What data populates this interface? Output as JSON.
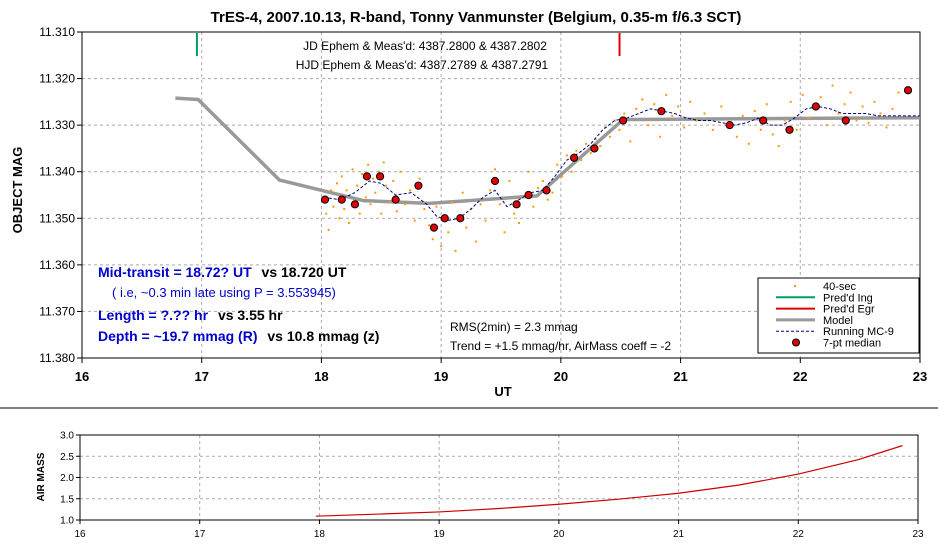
{
  "chart_data": [
    {
      "type": "scatter",
      "title": "TrES-4, 2007.10.13, R-band, Tonny Vanmunster (Belgium, 0.35-m f/6.3 SCT)",
      "xlabel": "UT",
      "ylabel": "OBJECT MAG",
      "xlim": [
        16,
        23
      ],
      "ylim": [
        11.31,
        11.38
      ],
      "y_inverted": true,
      "grid": true,
      "xticks": [
        "16",
        "17",
        "18",
        "19",
        "20",
        "21",
        "22",
        "23"
      ],
      "yticks": [
        "11.310",
        "11.320",
        "11.330",
        "11.340",
        "11.350",
        "11.360",
        "11.370",
        "11.380"
      ],
      "legend_position": "bottom-right",
      "annotations": {
        "ephem_jd": "JD Ephem & Meas'd: 4387.2800 & 4387.2802",
        "ephem_hjd": "HJD Ephem & Meas'd: 4387.2789 & 4387.2791",
        "mid_transit_a": "Mid-transit = 18.72? UT",
        "mid_transit_b": "vs 18.720 UT",
        "late_note": "( i.e, ~0.3 min late using P = 3.553945)",
        "length_a": "Length = ?.?? hr",
        "length_b": "vs 3.55 hr",
        "depth_a": "Depth = ~19.7 mmag (R)",
        "depth_b": "vs 10.8 mmag (z)",
        "rms": "RMS(2min) = 2.3 mmag",
        "trend": "Trend = +1.5 mmag/hr, AirMass coeff = -2"
      },
      "vlines": [
        {
          "name": "Pred'd Ing",
          "x": 16.96,
          "color": "#00a060"
        },
        {
          "name": "Pred'd Egr",
          "x": 20.49,
          "color": "#e00000"
        }
      ],
      "series": [
        {
          "name": "40-sec",
          "kind": "points",
          "color": "#ff9900",
          "points": [
            [
              18.02,
              11.3455
            ],
            [
              18.04,
              11.349
            ],
            [
              18.06,
              11.3525
            ],
            [
              18.08,
              11.344
            ],
            [
              18.1,
              11.3475
            ],
            [
              18.13,
              11.3425
            ],
            [
              18.15,
              11.35
            ],
            [
              18.17,
              11.341
            ],
            [
              18.19,
              11.348
            ],
            [
              18.21,
              11.344
            ],
            [
              18.23,
              11.351
            ],
            [
              18.26,
              11.3395
            ],
            [
              18.28,
              11.3465
            ],
            [
              18.3,
              11.343
            ],
            [
              18.32,
              11.349
            ],
            [
              18.34,
              11.3405
            ],
            [
              18.37,
              11.3455
            ],
            [
              18.39,
              11.3385
            ],
            [
              18.41,
              11.347
            ],
            [
              18.43,
              11.3415
            ],
            [
              18.45,
              11.3445
            ],
            [
              18.48,
              11.34
            ],
            [
              18.5,
              11.349
            ],
            [
              18.52,
              11.338
            ],
            [
              18.54,
              11.343
            ],
            [
              18.57,
              11.3465
            ],
            [
              18.6,
              11.342
            ],
            [
              18.63,
              11.3485
            ],
            [
              18.66,
              11.34
            ],
            [
              18.7,
              11.347
            ],
            [
              18.74,
              11.344
            ],
            [
              18.78,
              11.3505
            ],
            [
              18.82,
              11.3415
            ],
            [
              18.86,
              11.348
            ],
            [
              18.9,
              11.3515
            ],
            [
              18.93,
              11.3545
            ],
            [
              18.96,
              11.3475
            ],
            [
              19.0,
              11.356
            ],
            [
              19.03,
              11.3495
            ],
            [
              19.06,
              11.353
            ],
            [
              19.09,
              11.3465
            ],
            [
              19.12,
              11.357
            ],
            [
              19.15,
              11.35
            ],
            [
              19.18,
              11.3445
            ],
            [
              19.21,
              11.352
            ],
            [
              19.25,
              11.348
            ],
            [
              19.29,
              11.355
            ],
            [
              19.33,
              11.347
            ],
            [
              19.37,
              11.3505
            ],
            [
              19.41,
              11.344
            ],
            [
              19.45,
              11.3395
            ],
            [
              19.49,
              11.347
            ],
            [
              19.53,
              11.353
            ],
            [
              19.57,
              11.342
            ],
            [
              19.61,
              11.349
            ],
            [
              19.65,
              11.351
            ],
            [
              19.69,
              11.3455
            ],
            [
              19.73,
              11.34
            ],
            [
              19.77,
              11.3475
            ],
            [
              19.81,
              11.3435
            ],
            [
              19.85,
              11.342
            ],
            [
              19.89,
              11.346
            ],
            [
              19.93,
              11.3445
            ],
            [
              19.97,
              11.3385
            ],
            [
              20.01,
              11.341
            ],
            [
              20.05,
              11.3365
            ],
            [
              20.09,
              11.34
            ],
            [
              20.13,
              11.3355
            ],
            [
              20.17,
              11.3375
            ],
            [
              20.21,
              11.334
            ],
            [
              20.25,
              11.336
            ],
            [
              20.29,
              11.333
            ],
            [
              20.33,
              11.3345
            ],
            [
              20.37,
              11.3305
            ],
            [
              20.41,
              11.3325
            ],
            [
              20.45,
              11.329
            ],
            [
              20.49,
              11.331
            ],
            [
              20.53,
              11.3275
            ],
            [
              20.58,
              11.3335
            ],
            [
              20.63,
              11.3265
            ],
            [
              20.68,
              11.3245
            ],
            [
              20.73,
              11.33
            ],
            [
              20.78,
              11.3255
            ],
            [
              20.83,
              11.3325
            ],
            [
              20.88,
              11.3235
            ],
            [
              20.93,
              11.328
            ],
            [
              20.98,
              11.326
            ],
            [
              21.03,
              11.3305
            ],
            [
              21.08,
              11.325
            ],
            [
              21.13,
              11.329
            ],
            [
              21.2,
              11.3275
            ],
            [
              21.27,
              11.331
            ],
            [
              21.34,
              11.326
            ],
            [
              21.4,
              11.3295
            ],
            [
              21.47,
              11.3325
            ],
            [
              21.52,
              11.328
            ],
            [
              21.57,
              11.334
            ],
            [
              21.62,
              11.327
            ],
            [
              21.67,
              11.331
            ],
            [
              21.72,
              11.3255
            ],
            [
              21.77,
              11.332
            ],
            [
              21.82,
              11.3345
            ],
            [
              21.87,
              11.329
            ],
            [
              21.92,
              11.325
            ],
            [
              21.97,
              11.331
            ],
            [
              22.02,
              11.3235
            ],
            [
              22.07,
              11.3285
            ],
            [
              22.12,
              11.3265
            ],
            [
              22.17,
              11.324
            ],
            [
              22.22,
              11.33
            ],
            [
              22.27,
              11.3215
            ],
            [
              22.32,
              11.3275
            ],
            [
              22.37,
              11.3255
            ],
            [
              22.42,
              11.323
            ],
            [
              22.47,
              11.329
            ],
            [
              22.52,
              11.326
            ],
            [
              22.57,
              11.3295
            ],
            [
              22.62,
              11.325
            ],
            [
              22.67,
              11.3275
            ],
            [
              22.72,
              11.3305
            ],
            [
              22.77,
              11.3265
            ],
            [
              22.82,
              11.323
            ]
          ]
        },
        {
          "name": "Running MC-9",
          "kind": "dashed-line",
          "color": "#000080",
          "points": [
            [
              18.02,
              11.3455
            ],
            [
              18.15,
              11.346
            ],
            [
              18.28,
              11.3445
            ],
            [
              18.4,
              11.342
            ],
            [
              18.5,
              11.3425
            ],
            [
              18.62,
              11.345
            ],
            [
              18.75,
              11.3445
            ],
            [
              18.88,
              11.347
            ],
            [
              18.96,
              11.3495
            ],
            [
              19.05,
              11.3505
            ],
            [
              19.15,
              11.35
            ],
            [
              19.25,
              11.348
            ],
            [
              19.35,
              11.3455
            ],
            [
              19.45,
              11.344
            ],
            [
              19.55,
              11.3475
            ],
            [
              19.65,
              11.346
            ],
            [
              19.75,
              11.3445
            ],
            [
              19.85,
              11.344
            ],
            [
              19.95,
              11.341
            ],
            [
              20.05,
              11.3375
            ],
            [
              20.15,
              11.336
            ],
            [
              20.25,
              11.334
            ],
            [
              20.35,
              11.331
            ],
            [
              20.45,
              11.329
            ],
            [
              20.55,
              11.3285
            ],
            [
              20.65,
              11.3275
            ],
            [
              20.75,
              11.3265
            ],
            [
              20.85,
              11.327
            ],
            [
              20.95,
              11.3275
            ],
            [
              21.05,
              11.3285
            ],
            [
              21.15,
              11.329
            ],
            [
              21.25,
              11.329
            ],
            [
              21.35,
              11.3295
            ],
            [
              21.45,
              11.33
            ],
            [
              21.55,
              11.3295
            ],
            [
              21.65,
              11.3285
            ],
            [
              21.75,
              11.33
            ],
            [
              21.85,
              11.33
            ],
            [
              21.95,
              11.3285
            ],
            [
              22.05,
              11.3265
            ],
            [
              22.15,
              11.326
            ],
            [
              22.25,
              11.3265
            ],
            [
              22.35,
              11.3275
            ],
            [
              22.45,
              11.3275
            ],
            [
              22.55,
              11.3275
            ],
            [
              22.65,
              11.328
            ],
            [
              22.8,
              11.328
            ],
            [
              23.0,
              11.328
            ]
          ]
        },
        {
          "name": "Model",
          "kind": "line",
          "color": "#999999",
          "points": [
            [
              16.78,
              11.3242
            ],
            [
              16.97,
              11.3245
            ],
            [
              17.65,
              11.3418
            ],
            [
              18.35,
              11.3462
            ],
            [
              18.9,
              11.3468
            ],
            [
              19.8,
              11.3452
            ],
            [
              20.52,
              11.3288
            ],
            [
              23.0,
              11.3284
            ]
          ]
        },
        {
          "name": "7-pt median",
          "kind": "markers",
          "color": "#e00000",
          "points": [
            [
              18.03,
              11.346
            ],
            [
              18.17,
              11.346
            ],
            [
              18.28,
              11.347
            ],
            [
              18.38,
              11.341
            ],
            [
              18.49,
              11.341
            ],
            [
              18.62,
              11.346
            ],
            [
              18.81,
              11.343
            ],
            [
              18.94,
              11.352
            ],
            [
              19.03,
              11.35
            ],
            [
              19.16,
              11.35
            ],
            [
              19.45,
              11.342
            ],
            [
              19.63,
              11.347
            ],
            [
              19.73,
              11.345
            ],
            [
              19.88,
              11.344
            ],
            [
              20.11,
              11.337
            ],
            [
              20.28,
              11.335
            ],
            [
              20.52,
              11.329
            ],
            [
              20.84,
              11.327
            ],
            [
              21.41,
              11.33
            ],
            [
              21.69,
              11.329
            ],
            [
              21.91,
              11.331
            ],
            [
              22.13,
              11.326
            ],
            [
              22.38,
              11.329
            ],
            [
              22.9,
              11.3225
            ]
          ]
        }
      ]
    },
    {
      "type": "line",
      "ylabel": "AIR MASS",
      "xlim": [
        16,
        23
      ],
      "ylim": [
        1.0,
        3.0
      ],
      "grid": true,
      "xticks": [
        "16",
        "17",
        "18",
        "19",
        "20",
        "21",
        "22",
        "23"
      ],
      "yticks": [
        "1.0",
        "1.5",
        "2.0",
        "2.5",
        "3.0"
      ],
      "series": [
        {
          "color": "#cc0000",
          "points": [
            [
              17.97,
              1.09
            ],
            [
              18.5,
              1.14
            ],
            [
              19.0,
              1.19
            ],
            [
              19.5,
              1.27
            ],
            [
              20.0,
              1.37
            ],
            [
              20.5,
              1.49
            ],
            [
              21.0,
              1.63
            ],
            [
              21.5,
              1.82
            ],
            [
              22.0,
              2.08
            ],
            [
              22.5,
              2.42
            ],
            [
              22.87,
              2.75
            ]
          ]
        }
      ]
    }
  ]
}
